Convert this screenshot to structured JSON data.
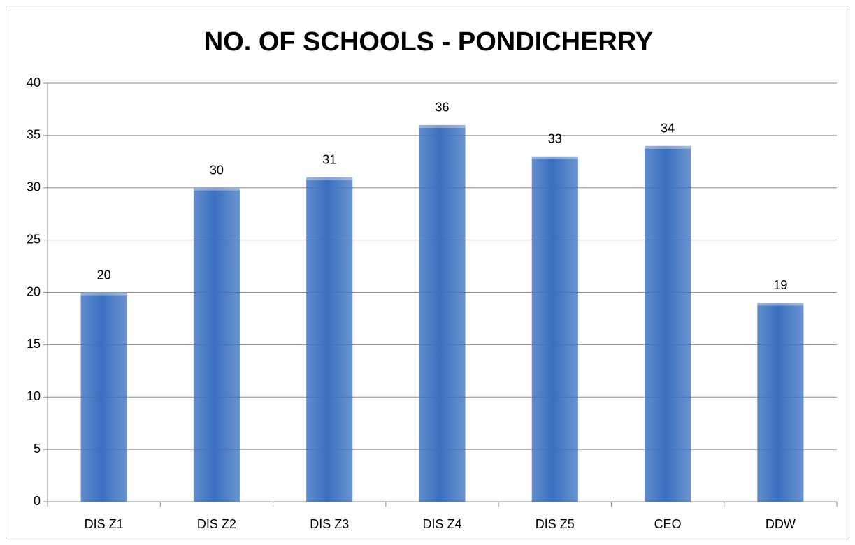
{
  "chart_data": {
    "type": "bar",
    "title": "NO. OF SCHOOLS - PONDICHERRY",
    "categories": [
      "DIS Z1",
      "DIS Z2",
      "DIS Z3",
      "DIS Z4",
      "DIS Z5",
      "CEO",
      "DDW"
    ],
    "values": [
      20,
      30,
      31,
      36,
      33,
      34,
      19
    ],
    "color": "#3a70c0",
    "ylim": [
      0,
      40
    ],
    "yticks": [
      0,
      5,
      10,
      15,
      20,
      25,
      30,
      35,
      40
    ],
    "grid": true
  }
}
